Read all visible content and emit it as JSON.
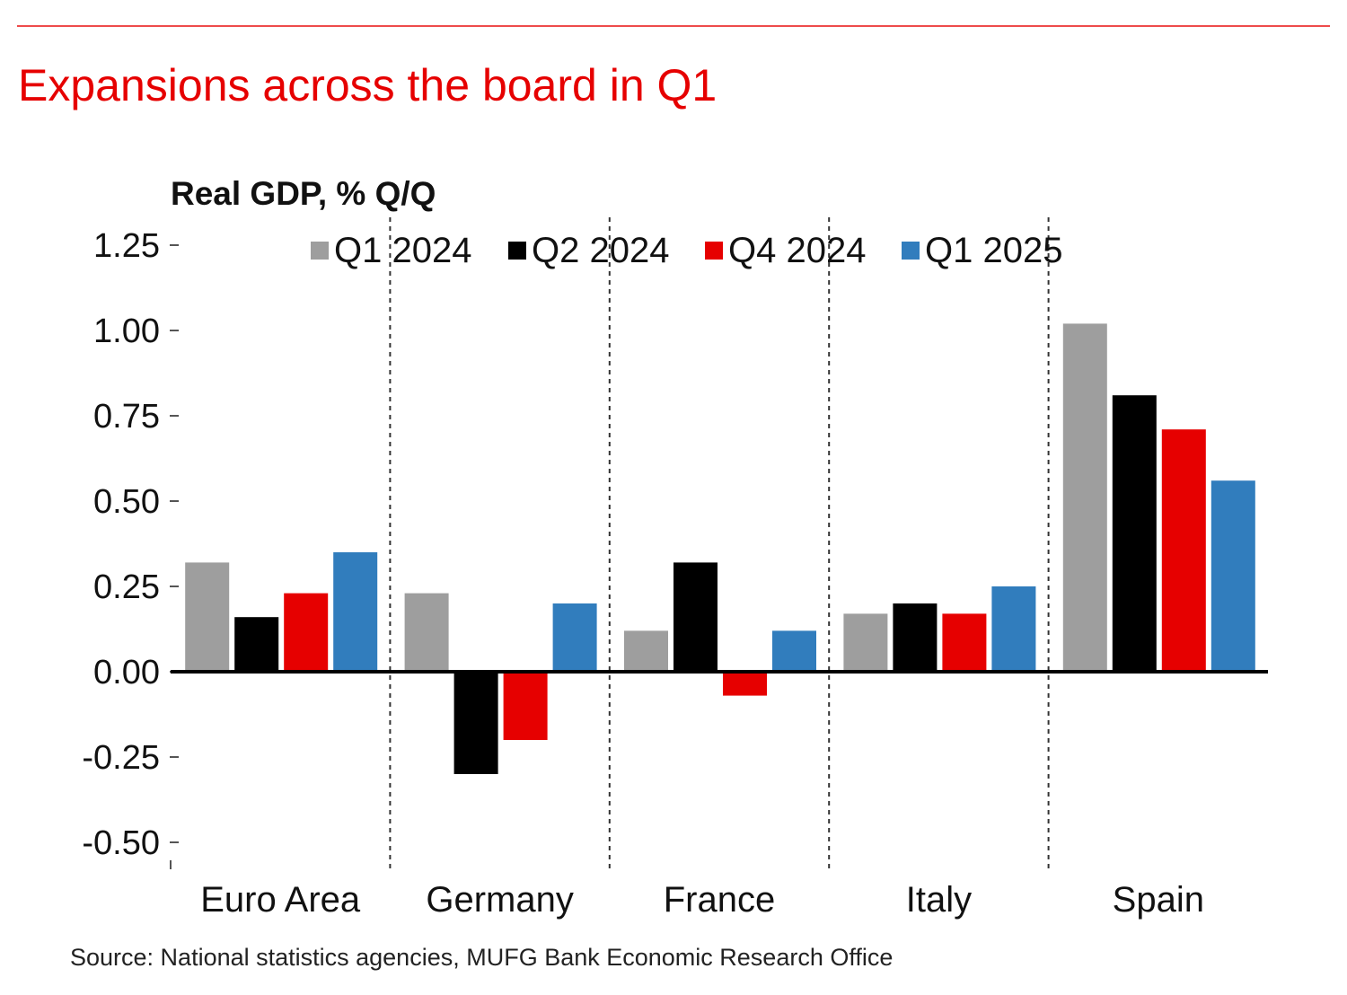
{
  "header": {
    "title": "Expansions across the board in Q1"
  },
  "footer": {
    "source": "Source: National statistics agencies, MUFG Bank Economic Research Office"
  },
  "chart_data": {
    "type": "bar",
    "title": "Expansions across the board in Q1",
    "subtitle": "Real GDP, % Q/Q",
    "xlabel": "",
    "ylabel": "Real GDP, % Q/Q",
    "ylim": [
      -0.5,
      1.25
    ],
    "yticks": [
      -0.5,
      -0.25,
      0.0,
      0.25,
      0.5,
      0.75,
      1.0,
      1.25
    ],
    "ytick_labels": [
      "-0.50",
      "-0.25",
      "0.00",
      "0.25",
      "0.50",
      "0.75",
      "1.00",
      "1.25"
    ],
    "grid": false,
    "category_separators": "dotted",
    "legend_position": "top",
    "categories": [
      "Euro Area",
      "Germany",
      "France",
      "Italy",
      "Spain"
    ],
    "series": [
      {
        "name": "Q1 2024",
        "color": "#9e9e9e",
        "values": [
          0.32,
          0.23,
          0.12,
          0.17,
          1.02
        ]
      },
      {
        "name": "Q2 2024",
        "color": "#000000",
        "values": [
          0.16,
          -0.3,
          0.32,
          0.2,
          0.81
        ]
      },
      {
        "name": "Q4 2024",
        "color": "#e60000",
        "values": [
          0.23,
          -0.2,
          -0.07,
          0.17,
          0.71
        ]
      },
      {
        "name": "Q1 2025",
        "color": "#317dbd",
        "values": [
          0.35,
          0.2,
          0.12,
          0.25,
          0.56
        ]
      }
    ]
  }
}
